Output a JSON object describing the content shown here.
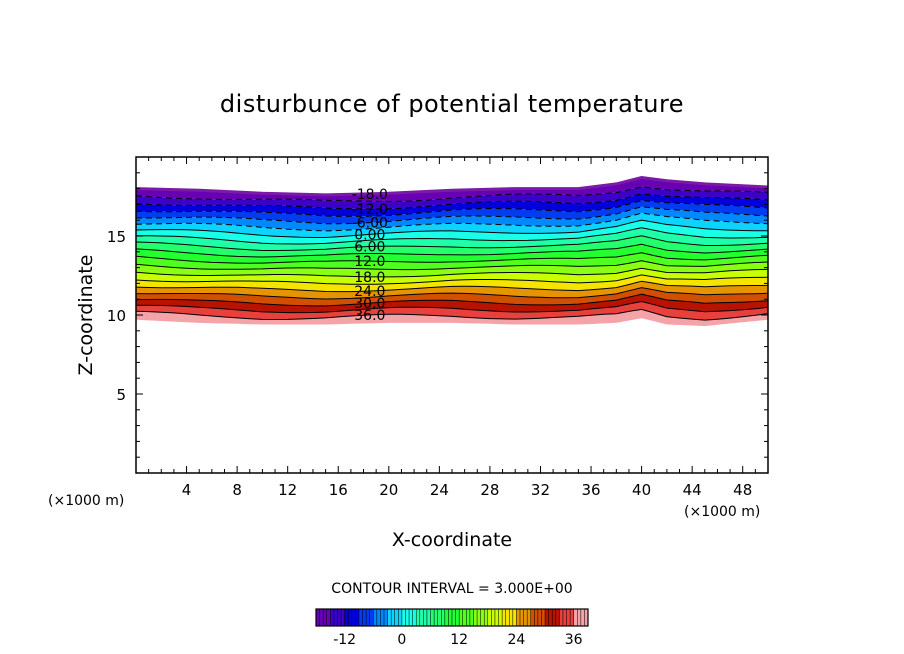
{
  "chart_data": {
    "type": "contour",
    "title": "disturbunce of potential temperature",
    "xlabel": "X-coordinate",
    "ylabel": "Z-coordinate",
    "x_unit_label": "(×1000 m)",
    "z_unit_label": "(×1000 m)",
    "xlim": [
      0,
      50
    ],
    "ylim": [
      0,
      20
    ],
    "x_ticks": [
      4,
      8,
      12,
      16,
      20,
      24,
      28,
      32,
      36,
      40,
      44,
      48
    ],
    "y_ticks": [
      5,
      10,
      15
    ],
    "contour_interval_text": "CONTOUR INTERVAL = 3.000E+00",
    "contour_interval": 3.0,
    "value_range": [
      -18,
      39
    ],
    "top_boundary": [
      [
        0,
        18.0
      ],
      [
        5,
        17.9
      ],
      [
        10,
        17.7
      ],
      [
        15,
        17.6
      ],
      [
        20,
        17.7
      ],
      [
        25,
        17.9
      ],
      [
        30,
        18.0
      ],
      [
        35,
        18.0
      ],
      [
        38,
        18.3
      ],
      [
        40,
        18.7
      ],
      [
        42,
        18.5
      ],
      [
        45,
        18.3
      ],
      [
        50,
        18.1
      ]
    ],
    "bottom_boundary": [
      [
        0,
        9.7
      ],
      [
        5,
        9.5
      ],
      [
        10,
        9.4
      ],
      [
        15,
        9.4
      ],
      [
        20,
        9.5
      ],
      [
        25,
        9.5
      ],
      [
        30,
        9.4
      ],
      [
        35,
        9.4
      ],
      [
        38,
        9.5
      ],
      [
        40,
        9.8
      ],
      [
        42,
        9.4
      ],
      [
        45,
        9.3
      ],
      [
        50,
        9.7
      ]
    ],
    "contour_labels": [
      "-18.0",
      "-12.0",
      "-6.00",
      "0.00",
      "6.00",
      "12.0",
      "18.0",
      "24.0",
      "30.0",
      "36.0"
    ],
    "colorbar": {
      "ticks": [
        "-12",
        "0",
        "12",
        "24",
        "36"
      ],
      "levels": [
        -18,
        -15,
        -12,
        -9,
        -6,
        -3,
        0,
        3,
        6,
        9,
        12,
        15,
        18,
        21,
        24,
        27,
        30,
        33,
        36,
        39
      ]
    }
  }
}
